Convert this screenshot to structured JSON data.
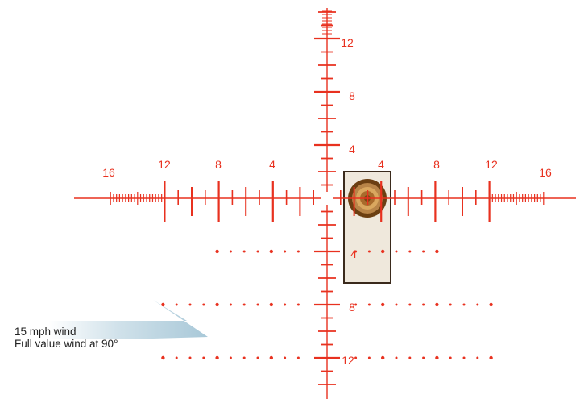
{
  "reticle": {
    "color": "#e8311f",
    "horizontal_labels_left": [
      "16",
      "12",
      "8",
      "4"
    ],
    "horizontal_labels_right": [
      "4",
      "8",
      "12",
      "16"
    ],
    "vertical_labels_up": [
      "4",
      "8",
      "12"
    ],
    "vertical_labels_down": [
      "4",
      "8",
      "12"
    ]
  },
  "wind": {
    "arrow_color": "#a8c8d8",
    "line1": "15 mph wind",
    "line2": "Full value wind at 90°"
  },
  "target": {
    "frame_color": "#3a2a1c",
    "fill_color": "#efe8dc",
    "bullseye_colors": [
      "#6b3f12",
      "#b88448",
      "#d9a75f",
      "#a86b2c",
      "#7a4712"
    ]
  }
}
